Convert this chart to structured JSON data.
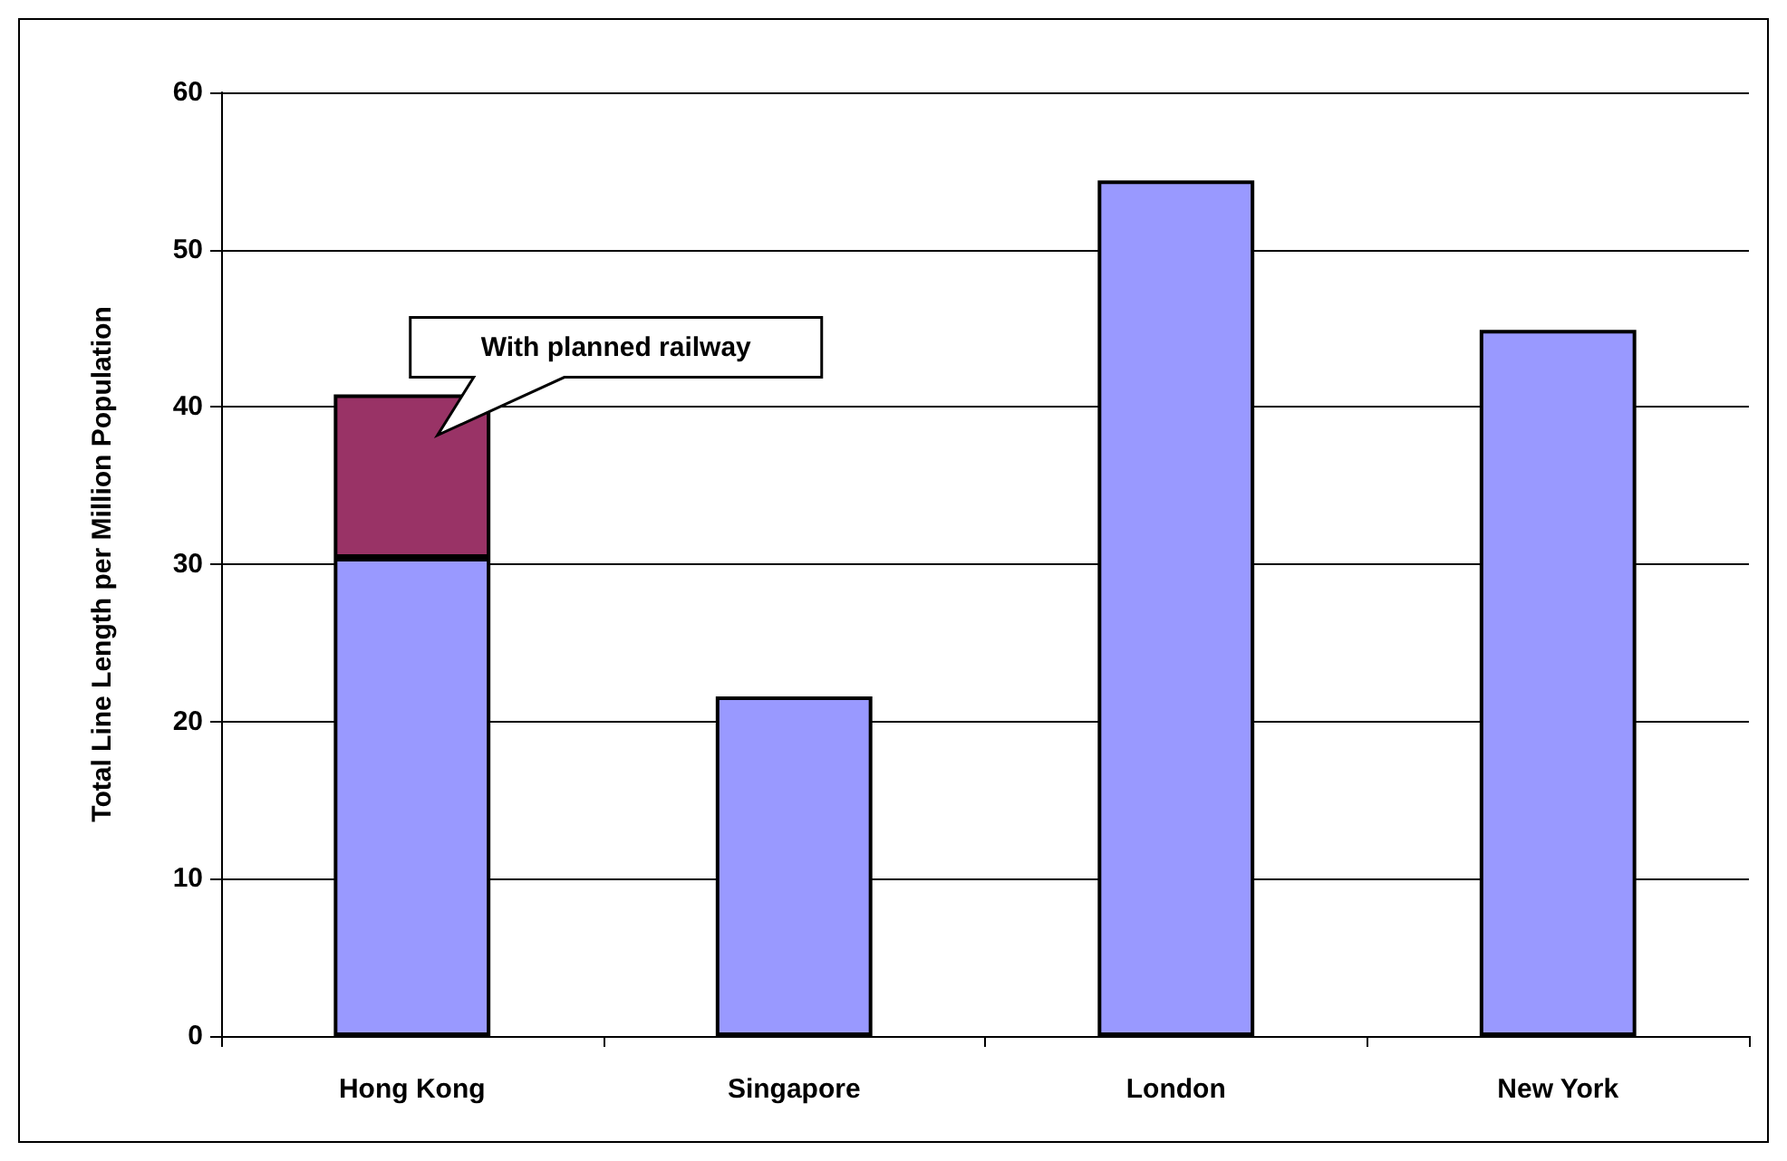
{
  "chart_data": {
    "type": "bar",
    "ylabel": "Total Line Length per Million Population",
    "categories": [
      "Hong Kong",
      "Singapore",
      "London",
      "New York"
    ],
    "stacked": true,
    "series": [
      {
        "color": "#9999ff",
        "values": [
          30.4,
          21.6,
          54.4,
          44.9
        ]
      },
      {
        "color": "#993366",
        "values": [
          10.4,
          null,
          null,
          null
        ]
      }
    ],
    "ylim": [
      0,
      60
    ],
    "yticks": [
      0,
      10,
      20,
      30,
      40,
      50,
      60
    ],
    "grid": "y",
    "annotations": [
      "With planned railway"
    ]
  }
}
